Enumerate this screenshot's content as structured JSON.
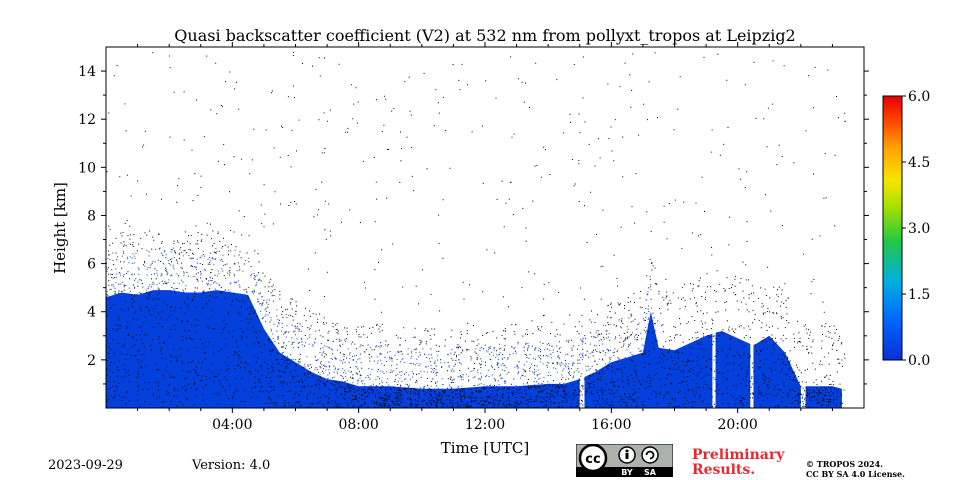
{
  "chart_data": {
    "type": "heatmap",
    "title": "Quasi backscatter coefficient (V2) at 532 nm from pollyxt_tropos at Leipzig2",
    "xlabel": "Time [UTC]",
    "ylabel": "Height [km]",
    "xlim": [
      0,
      24
    ],
    "ylim": [
      0,
      15
    ],
    "x_ticks": [
      4,
      8,
      12,
      16,
      20
    ],
    "x_tick_labels": [
      "04:00",
      "08:00",
      "12:00",
      "16:00",
      "20:00"
    ],
    "y_ticks": [
      2,
      4,
      6,
      8,
      10,
      12,
      14
    ],
    "y_tick_labels": [
      "2",
      "4",
      "6",
      "8",
      "10",
      "12",
      "14"
    ],
    "colorbar": {
      "range": [
        0,
        6
      ],
      "ticks": [
        0,
        1.5,
        3,
        4.5,
        6
      ],
      "tick_labels": [
        "0.0",
        "1.5",
        "3.0",
        "4.5",
        "6.0"
      ],
      "colors": [
        "#0000cc",
        "#0066ff",
        "#00bbdd",
        "#33cc33",
        "#ccff00",
        "#ffcc00",
        "#ff6600",
        "#ee0000"
      ]
    },
    "fill_color": "#0440dc",
    "dot_color": "#000000",
    "missing_data_hours": [
      [
        15.0,
        15.15
      ],
      [
        19.2,
        19.3
      ],
      [
        20.4,
        20.5
      ],
      [
        22.0,
        22.15
      ]
    ],
    "aerosol_layer_top_km": [
      [
        0.0,
        4.6
      ],
      [
        0.5,
        4.8
      ],
      [
        1.0,
        4.7
      ],
      [
        1.5,
        4.9
      ],
      [
        2.0,
        4.9
      ],
      [
        2.5,
        4.8
      ],
      [
        3.0,
        4.8
      ],
      [
        3.5,
        4.9
      ],
      [
        4.0,
        4.8
      ],
      [
        4.5,
        4.7
      ],
      [
        5.0,
        3.3
      ],
      [
        5.5,
        2.3
      ],
      [
        6.0,
        1.9
      ],
      [
        6.5,
        1.5
      ],
      [
        7.0,
        1.2
      ],
      [
        7.5,
        1.1
      ],
      [
        8.0,
        0.9
      ],
      [
        9.0,
        0.9
      ],
      [
        10.0,
        0.8
      ],
      [
        11.0,
        0.8
      ],
      [
        12.0,
        0.9
      ],
      [
        13.0,
        0.9
      ],
      [
        14.0,
        1.0
      ],
      [
        14.5,
        1.0
      ],
      [
        15.0,
        1.2
      ],
      [
        15.5,
        1.5
      ],
      [
        16.0,
        1.9
      ],
      [
        16.5,
        2.1
      ],
      [
        17.0,
        2.3
      ],
      [
        17.25,
        4.0
      ],
      [
        17.5,
        2.5
      ],
      [
        18.0,
        2.4
      ],
      [
        18.5,
        2.7
      ],
      [
        19.0,
        3.0
      ],
      [
        19.5,
        3.2
      ],
      [
        20.0,
        2.9
      ],
      [
        20.5,
        2.6
      ],
      [
        21.0,
        3.0
      ],
      [
        21.5,
        2.3
      ],
      [
        22.0,
        0.9
      ],
      [
        22.5,
        0.9
      ],
      [
        23.0,
        0.9
      ],
      [
        23.3,
        0.8
      ]
    ]
  },
  "footer": {
    "date": "2023-09-29",
    "version": "Version: 4.0",
    "preliminary_line1": "Preliminary",
    "preliminary_line2": "Results.",
    "copyright_line1": "© TROPOS 2024.",
    "copyright_line2": "CC BY SA 4.0 License.",
    "license_badge": {
      "cc": "cc",
      "by": "BY",
      "sa": "SA"
    }
  }
}
